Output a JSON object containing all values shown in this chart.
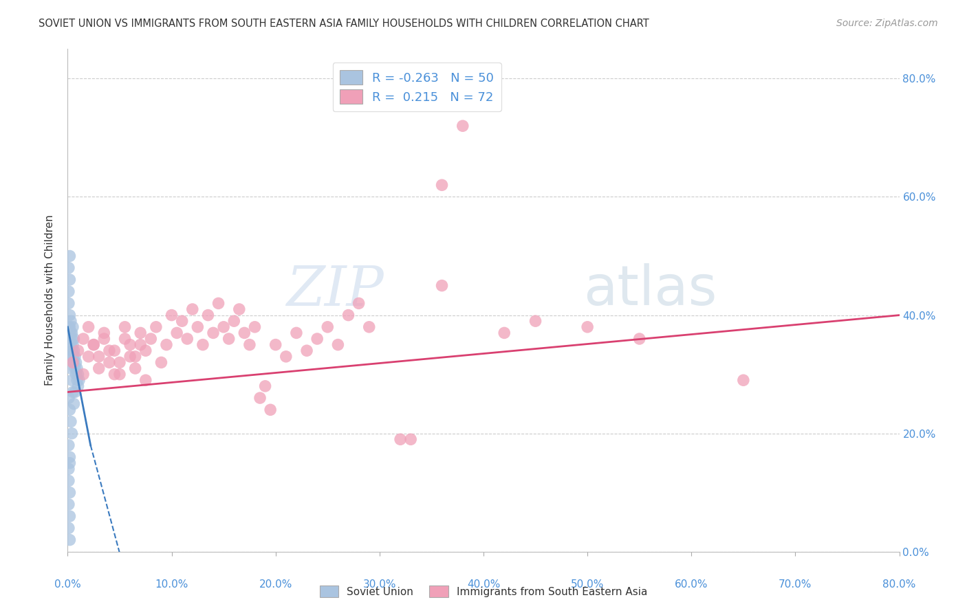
{
  "title": "SOVIET UNION VS IMMIGRANTS FROM SOUTH EASTERN ASIA FAMILY HOUSEHOLDS WITH CHILDREN CORRELATION CHART",
  "source": "Source: ZipAtlas.com",
  "ylabel": "Family Households with Children",
  "xmin": 0.0,
  "xmax": 0.8,
  "ymin": 0.0,
  "ymax": 0.85,
  "yticks": [
    0.0,
    0.2,
    0.4,
    0.6,
    0.8
  ],
  "xticks": [
    0.0,
    0.1,
    0.2,
    0.3,
    0.4,
    0.5,
    0.6,
    0.7,
    0.8
  ],
  "grid_color": "#cccccc",
  "background_color": "#ffffff",
  "watermark_zip": "ZIP",
  "watermark_atlas": "atlas",
  "legend_R1": "-0.263",
  "legend_N1": "50",
  "legend_R2": " 0.215",
  "legend_N2": "72",
  "blue_color": "#aac4e0",
  "pink_color": "#f0a0b8",
  "blue_line_color": "#3a7abf",
  "pink_line_color": "#d94070",
  "blue_scatter": [
    [
      0.001,
      0.42
    ],
    [
      0.002,
      0.4
    ],
    [
      0.002,
      0.38
    ],
    [
      0.003,
      0.37
    ],
    [
      0.003,
      0.35
    ],
    [
      0.004,
      0.36
    ],
    [
      0.004,
      0.34
    ],
    [
      0.005,
      0.35
    ],
    [
      0.005,
      0.33
    ],
    [
      0.006,
      0.34
    ],
    [
      0.006,
      0.32
    ],
    [
      0.007,
      0.33
    ],
    [
      0.007,
      0.31
    ],
    [
      0.008,
      0.32
    ],
    [
      0.008,
      0.3
    ],
    [
      0.009,
      0.31
    ],
    [
      0.009,
      0.29
    ],
    [
      0.01,
      0.3
    ],
    [
      0.01,
      0.28
    ],
    [
      0.011,
      0.29
    ],
    [
      0.001,
      0.38
    ],
    [
      0.002,
      0.36
    ],
    [
      0.003,
      0.39
    ],
    [
      0.004,
      0.37
    ],
    [
      0.005,
      0.38
    ],
    [
      0.006,
      0.36
    ],
    [
      0.002,
      0.33
    ],
    [
      0.003,
      0.31
    ],
    [
      0.004,
      0.29
    ],
    [
      0.005,
      0.27
    ],
    [
      0.006,
      0.25
    ],
    [
      0.007,
      0.27
    ],
    [
      0.001,
      0.26
    ],
    [
      0.002,
      0.24
    ],
    [
      0.003,
      0.22
    ],
    [
      0.004,
      0.2
    ],
    [
      0.001,
      0.18
    ],
    [
      0.002,
      0.15
    ],
    [
      0.001,
      0.12
    ],
    [
      0.002,
      0.1
    ],
    [
      0.001,
      0.08
    ],
    [
      0.002,
      0.06
    ],
    [
      0.001,
      0.44
    ],
    [
      0.002,
      0.46
    ],
    [
      0.001,
      0.48
    ],
    [
      0.002,
      0.5
    ],
    [
      0.001,
      0.14
    ],
    [
      0.002,
      0.16
    ],
    [
      0.001,
      0.04
    ],
    [
      0.002,
      0.02
    ]
  ],
  "pink_scatter": [
    [
      0.005,
      0.32
    ],
    [
      0.01,
      0.34
    ],
    [
      0.015,
      0.3
    ],
    [
      0.02,
      0.33
    ],
    [
      0.025,
      0.35
    ],
    [
      0.03,
      0.31
    ],
    [
      0.035,
      0.36
    ],
    [
      0.04,
      0.32
    ],
    [
      0.045,
      0.34
    ],
    [
      0.05,
      0.3
    ],
    [
      0.055,
      0.38
    ],
    [
      0.06,
      0.35
    ],
    [
      0.065,
      0.33
    ],
    [
      0.07,
      0.37
    ],
    [
      0.075,
      0.34
    ],
    [
      0.08,
      0.36
    ],
    [
      0.085,
      0.38
    ],
    [
      0.09,
      0.32
    ],
    [
      0.095,
      0.35
    ],
    [
      0.1,
      0.4
    ],
    [
      0.105,
      0.37
    ],
    [
      0.11,
      0.39
    ],
    [
      0.115,
      0.36
    ],
    [
      0.12,
      0.41
    ],
    [
      0.125,
      0.38
    ],
    [
      0.13,
      0.35
    ],
    [
      0.135,
      0.4
    ],
    [
      0.14,
      0.37
    ],
    [
      0.145,
      0.42
    ],
    [
      0.15,
      0.38
    ],
    [
      0.155,
      0.36
    ],
    [
      0.16,
      0.39
    ],
    [
      0.165,
      0.41
    ],
    [
      0.17,
      0.37
    ],
    [
      0.175,
      0.35
    ],
    [
      0.18,
      0.38
    ],
    [
      0.015,
      0.36
    ],
    [
      0.02,
      0.38
    ],
    [
      0.025,
      0.35
    ],
    [
      0.03,
      0.33
    ],
    [
      0.035,
      0.37
    ],
    [
      0.04,
      0.34
    ],
    [
      0.045,
      0.3
    ],
    [
      0.05,
      0.32
    ],
    [
      0.055,
      0.36
    ],
    [
      0.06,
      0.33
    ],
    [
      0.065,
      0.31
    ],
    [
      0.07,
      0.35
    ],
    [
      0.075,
      0.29
    ],
    [
      0.185,
      0.26
    ],
    [
      0.19,
      0.28
    ],
    [
      0.195,
      0.24
    ],
    [
      0.2,
      0.35
    ],
    [
      0.21,
      0.33
    ],
    [
      0.22,
      0.37
    ],
    [
      0.23,
      0.34
    ],
    [
      0.24,
      0.36
    ],
    [
      0.25,
      0.38
    ],
    [
      0.26,
      0.35
    ],
    [
      0.27,
      0.4
    ],
    [
      0.28,
      0.42
    ],
    [
      0.29,
      0.38
    ],
    [
      0.32,
      0.19
    ],
    [
      0.33,
      0.19
    ],
    [
      0.36,
      0.45
    ],
    [
      0.36,
      0.62
    ],
    [
      0.38,
      0.72
    ],
    [
      0.65,
      0.29
    ],
    [
      0.42,
      0.37
    ],
    [
      0.45,
      0.39
    ],
    [
      0.5,
      0.38
    ],
    [
      0.55,
      0.36
    ]
  ],
  "blue_line": [
    [
      0.0,
      0.38
    ],
    [
      0.022,
      0.18
    ]
  ],
  "blue_line_ext": [
    [
      0.022,
      0.18
    ],
    [
      0.065,
      -0.1
    ]
  ],
  "pink_line": [
    [
      0.0,
      0.27
    ],
    [
      0.8,
      0.4
    ]
  ],
  "title_fontsize": 10.5,
  "axis_label_fontsize": 11,
  "tick_fontsize": 11,
  "source_fontsize": 10
}
